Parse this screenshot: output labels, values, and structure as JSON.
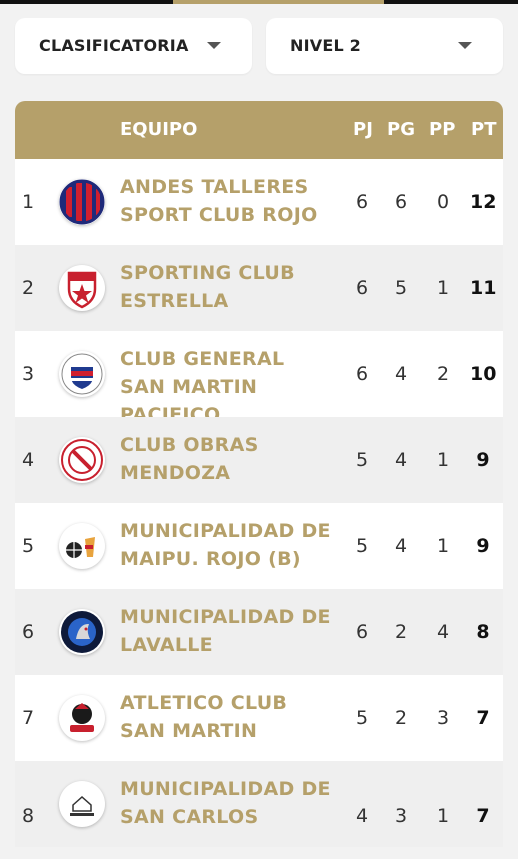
{
  "filters": {
    "category": "CLASIFICATORIA",
    "level": "NIVEL 2"
  },
  "table": {
    "headers": {
      "team": "EQUIPO",
      "pj": "PJ",
      "pg": "PG",
      "pp": "PP",
      "pt": "PT"
    },
    "rows": [
      {
        "pos": "1",
        "team": "ANDES TALLERES SPORT CLUB ROJO",
        "pj": "6",
        "pg": "6",
        "pp": "0",
        "pt": "12",
        "logo": "andes-talleres-logo"
      },
      {
        "pos": "2",
        "team": "SPORTING CLUB ESTRELLA",
        "pj": "6",
        "pg": "5",
        "pp": "1",
        "pt": "11",
        "logo": "sporting-club-estrella-logo"
      },
      {
        "pos": "3",
        "team": "CLUB GENERAL SAN MARTIN PACIFICO",
        "pj": "6",
        "pg": "4",
        "pp": "2",
        "pt": "10",
        "logo": "gsm-pacifico-logo"
      },
      {
        "pos": "4",
        "team": "CLUB OBRAS MENDOZA",
        "pj": "5",
        "pg": "4",
        "pp": "1",
        "pt": "9",
        "logo": "obras-mendoza-logo"
      },
      {
        "pos": "5",
        "team": "MUNICIPALIDAD DE MAIPU. ROJO (B)",
        "pj": "5",
        "pg": "4",
        "pp": "1",
        "pt": "9",
        "logo": "maipu-logo"
      },
      {
        "pos": "6",
        "team": "MUNICIPALIDAD DE LAVALLE",
        "pj": "6",
        "pg": "2",
        "pp": "4",
        "pt": "8",
        "logo": "lavalle-logo"
      },
      {
        "pos": "7",
        "team": "ATLETICO CLUB SAN MARTIN",
        "pj": "5",
        "pg": "2",
        "pp": "3",
        "pt": "7",
        "logo": "acsm-logo"
      },
      {
        "pos": "8",
        "team": "MUNICIPALIDAD DE SAN CARLOS",
        "pj": "4",
        "pg": "3",
        "pp": "1",
        "pt": "7",
        "logo": "san-carlos-logo"
      }
    ]
  },
  "colors": {
    "accent": "#b5a06a",
    "header_bar": "#111111"
  }
}
